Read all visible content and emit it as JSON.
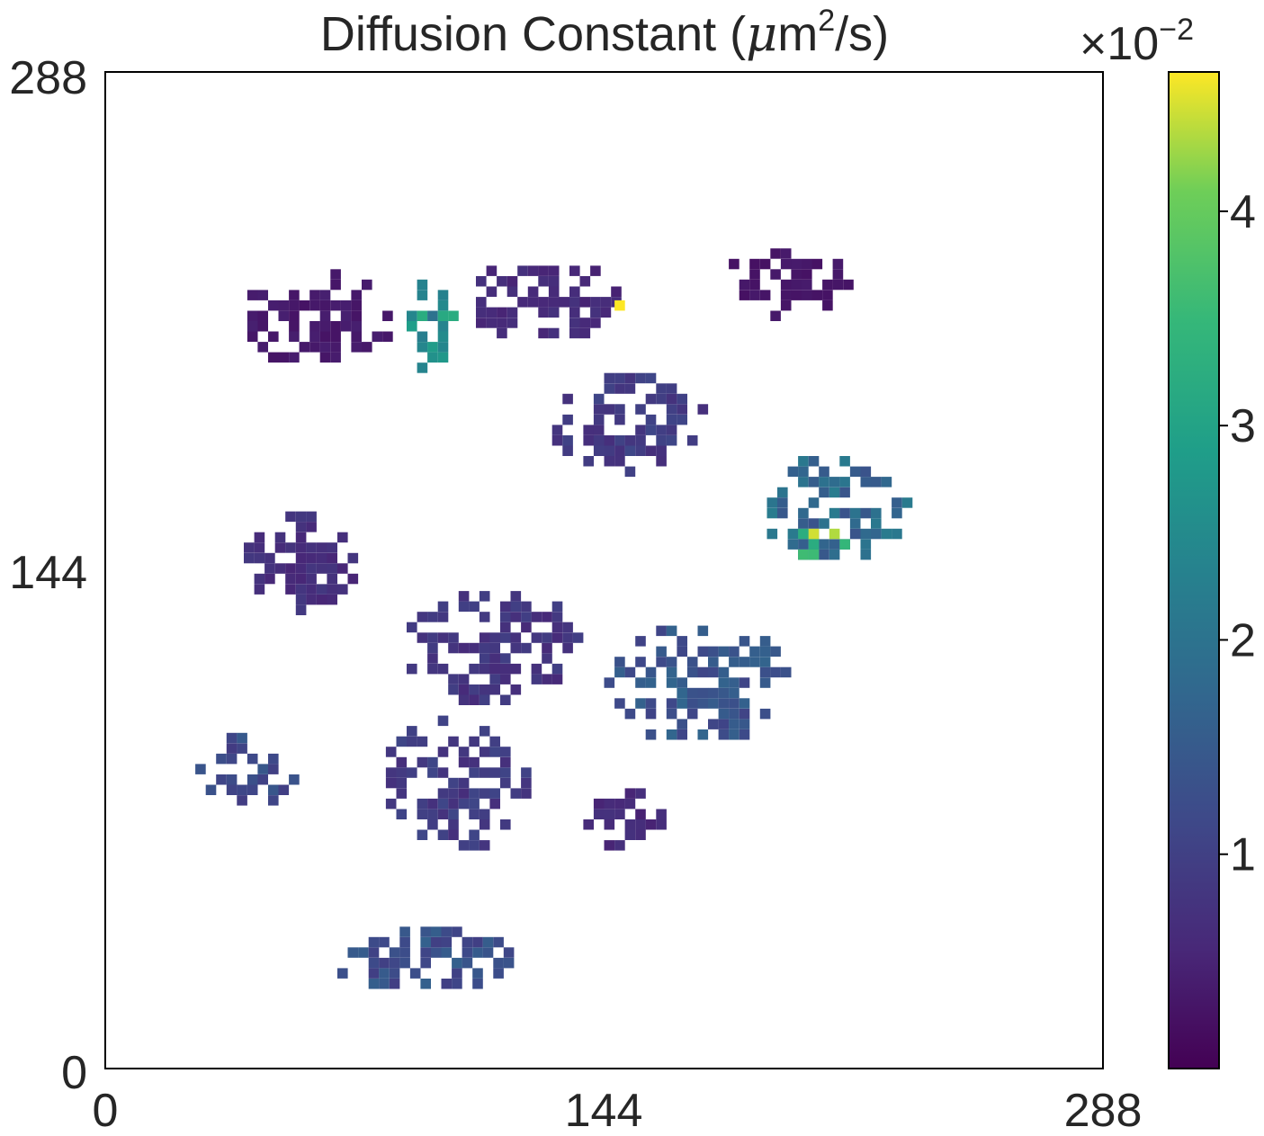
{
  "chart_data": {
    "type": "heatmap",
    "title_main": "Diffusion Constant (",
    "title_mu": "μ",
    "title_m": "m",
    "title_sup": "2",
    "title_end": "/s)",
    "x_ticks": [
      "0",
      "144",
      "288"
    ],
    "y_ticks": [
      "0",
      "144",
      "288"
    ],
    "xlim": [
      0,
      288
    ],
    "ylim": [
      0,
      288
    ],
    "colorbar": {
      "colormap": "viridis",
      "min": 0,
      "max": 4.65,
      "ticks": [
        1,
        2,
        3,
        4
      ],
      "tick_labels": [
        "1",
        "2",
        "3",
        "4"
      ],
      "scale_label": "×10",
      "scale_exponent": "−2"
    },
    "regions": [
      {
        "name": "upper-left",
        "x": 60,
        "y": 215,
        "rx": 22,
        "ry": 14,
        "value": 0.35
      },
      {
        "name": "upper-left-green-arc",
        "x": 92,
        "y": 212,
        "rx": 8,
        "ry": 14,
        "value": 2.6
      },
      {
        "name": "upper-center",
        "x": 125,
        "y": 220,
        "rx": 24,
        "ry": 12,
        "value": 0.6
      },
      {
        "name": "upper-right",
        "x": 195,
        "y": 225,
        "rx": 18,
        "ry": 12,
        "value": 0.3
      },
      {
        "name": "center-top",
        "x": 150,
        "y": 185,
        "rx": 24,
        "ry": 14,
        "value": 0.9
      },
      {
        "name": "right-middle",
        "x": 210,
        "y": 160,
        "rx": 22,
        "ry": 16,
        "value": 1.8
      },
      {
        "name": "right-hotspot",
        "x": 205,
        "y": 150,
        "rx": 8,
        "ry": 6,
        "value": 3.8
      },
      {
        "name": "left-middle",
        "x": 55,
        "y": 145,
        "rx": 18,
        "ry": 14,
        "value": 0.7
      },
      {
        "name": "center-band",
        "x": 110,
        "y": 120,
        "rx": 26,
        "ry": 18,
        "value": 0.8
      },
      {
        "name": "center-right",
        "x": 170,
        "y": 110,
        "rx": 26,
        "ry": 18,
        "value": 1.4
      },
      {
        "name": "lower-left",
        "x": 40,
        "y": 85,
        "rx": 14,
        "ry": 12,
        "value": 1.2
      },
      {
        "name": "lower-center",
        "x": 100,
        "y": 80,
        "rx": 22,
        "ry": 20,
        "value": 0.9
      },
      {
        "name": "lower-right",
        "x": 145,
        "y": 70,
        "rx": 16,
        "ry": 10,
        "value": 0.6
      },
      {
        "name": "bottom",
        "x": 90,
        "y": 30,
        "rx": 26,
        "ry": 10,
        "value": 1.3
      },
      {
        "name": "top-dot",
        "x": 146,
        "y": 218,
        "rx": 2,
        "ry": 2,
        "value": 4.5
      }
    ]
  }
}
